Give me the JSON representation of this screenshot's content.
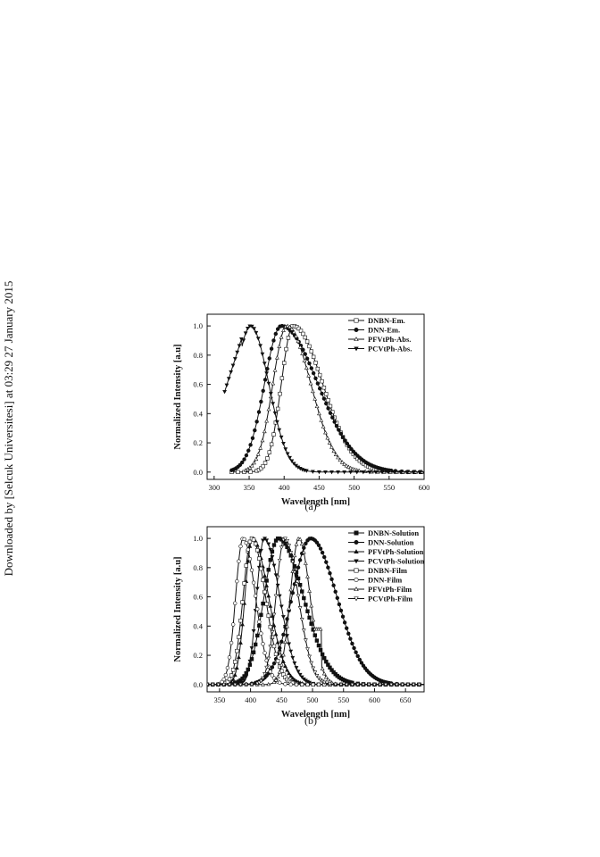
{
  "side_text": "Downloaded by [Selcuk Universitesi] at 03:29 27 January 2015",
  "chart_data": [
    {
      "type": "line",
      "caption": "(a)",
      "xlabel": "Wavelength [nm]",
      "ylabel": "Normalized Intensity [a.u]",
      "xlim": [
        290,
        600
      ],
      "ylim": [
        -0.05,
        1.08
      ],
      "xticks": [
        300,
        350,
        400,
        450,
        500,
        550,
        600
      ],
      "yticks": [
        0.0,
        0.2,
        0.4,
        0.6,
        0.8,
        1.0
      ],
      "legend_position": "top-right",
      "grid": false,
      "series": [
        {
          "name": "DNBN-Em.",
          "marker": "open-square",
          "style": "gauss",
          "x_range": [
            325,
            600
          ],
          "peak": 413,
          "width_left": 17,
          "width_right": 42
        },
        {
          "name": "DNN-Em.",
          "marker": "filled-circle",
          "style": "gauss",
          "x_range": [
            325,
            600
          ],
          "peak": 396,
          "width_left": 24,
          "width_right": 52
        },
        {
          "name": "PFVtPh-Abs.",
          "marker": "open-triangle-up",
          "style": "gauss",
          "x_range": [
            345,
            600
          ],
          "peak": 404,
          "width_left": 20,
          "width_right": 34
        },
        {
          "name": "PCVtPh-Abs.",
          "marker": "filled-triangle-down",
          "style": "gauss",
          "x_range": [
            315,
            600
          ],
          "peak": 352,
          "width_left": 22,
          "width_right": 26
        }
      ]
    },
    {
      "type": "line",
      "caption": "(b)",
      "xlabel": "Wavelength [nm]",
      "ylabel": "Normalized Intensity [a.u]",
      "xlim": [
        330,
        680
      ],
      "ylim": [
        -0.05,
        1.08
      ],
      "xticks": [
        350,
        400,
        450,
        500,
        550,
        600,
        650
      ],
      "yticks": [
        0.0,
        0.2,
        0.4,
        0.6,
        0.8,
        1.0
      ],
      "legend_position": "top-right",
      "grid": false,
      "series": [
        {
          "name": "DNBN-Solution",
          "marker": "filled-square",
          "peak": 445,
          "width_left": 23,
          "width_right": 40
        },
        {
          "name": "DNN-Solution",
          "marker": "filled-circle",
          "peak": 497,
          "width_left": 30,
          "width_right": 42
        },
        {
          "name": "PFVtPh-Solution",
          "marker": "filled-triangle-up",
          "peak": 403,
          "width_left": 12,
          "width_right": 26
        },
        {
          "name": "PCVtPh-Solution",
          "marker": "filled-triangle-down",
          "peak": 422,
          "width_left": 12,
          "width_right": 25
        },
        {
          "name": "DNBN-Film",
          "marker": "open-square",
          "peak": 402,
          "width_left": 14,
          "width_right": 22
        },
        {
          "name": "DNN-Film",
          "marker": "open-circle",
          "peak": 388,
          "width_left": 12,
          "width_right": 20
        },
        {
          "name": "PFVtPh-Film",
          "marker": "open-triangle-up",
          "peak": 478,
          "width_left": 14,
          "width_right": 18
        },
        {
          "name": "PCVtPh-Film",
          "marker": "open-triangle-down",
          "peak": 455,
          "width_left": 14,
          "width_right": 22
        }
      ]
    }
  ]
}
